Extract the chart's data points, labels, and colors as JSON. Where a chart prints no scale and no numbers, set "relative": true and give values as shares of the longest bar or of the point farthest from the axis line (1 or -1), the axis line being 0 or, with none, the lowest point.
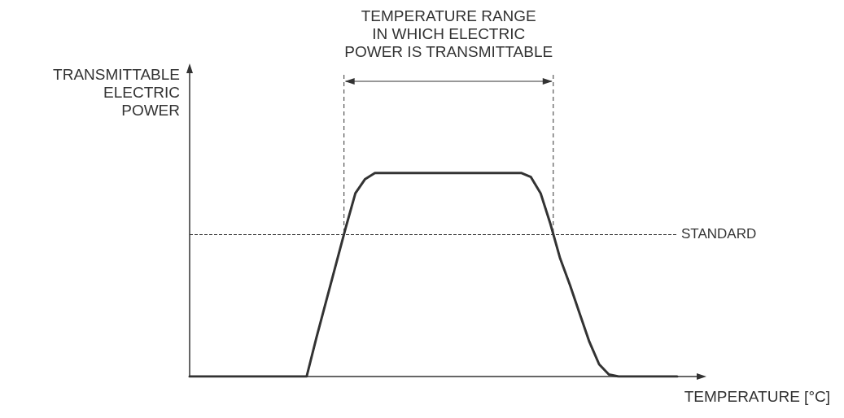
{
  "chart_data": {
    "type": "line",
    "relative": true,
    "xlabel": "TEMPERATURE [°C]",
    "ylabel": "TRANSMITTABLE\nELECTRIC\nPOWER",
    "color": "#333333",
    "categories": [
      null,
      null,
      null,
      null,
      null,
      null,
      null,
      null,
      null,
      null,
      null,
      null,
      null,
      null,
      null,
      null,
      null,
      null,
      null,
      null,
      null,
      null,
      null,
      null,
      null,
      null,
      null,
      null,
      null,
      null,
      null,
      null,
      null,
      null,
      null,
      null,
      null,
      null,
      null,
      null,
      null,
      null,
      null,
      null,
      null,
      null,
      null,
      null,
      null,
      null,
      null
    ],
    "values": [
      0,
      0,
      0,
      0,
      0,
      0,
      0,
      0,
      0,
      0,
      0,
      0,
      0,
      0.19,
      0.37,
      0.55,
      0.73,
      0.9,
      0.97,
      1,
      1,
      1,
      1,
      1,
      1,
      1,
      1,
      1,
      1,
      1,
      1,
      1,
      1,
      1,
      1,
      0.98,
      0.9,
      0.75,
      0.58,
      0.45,
      0.31,
      0.17,
      0.06,
      0.01,
      0,
      0,
      0,
      0,
      0,
      0,
      0
    ],
    "ref_lines": [
      {
        "axis": "y",
        "value": 0.7,
        "label": "STANDARD",
        "line_style": "dashed"
      }
    ],
    "annotations": [
      "TEMPERATURE RANGE\nIN WHICH ELECTRIC\nPOWER IS TRANSMITTABLE"
    ]
  }
}
